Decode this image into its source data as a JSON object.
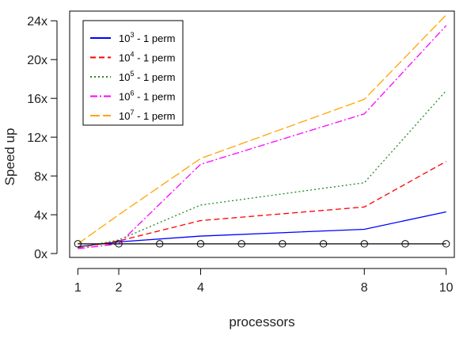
{
  "chart_data": {
    "type": "line",
    "title": "",
    "xlabel": "processors",
    "ylabel": "Speed up",
    "x_ticks": [
      1,
      2,
      4,
      8,
      10
    ],
    "y_ticks": [
      0,
      4,
      8,
      12,
      16,
      20,
      24
    ],
    "y_tick_labels": [
      "0x",
      "4x",
      "8x",
      "12x",
      "16x",
      "20x",
      "24x"
    ],
    "xlim": [
      0.8,
      10.2
    ],
    "ylim": [
      -0.4,
      25
    ],
    "grid": false,
    "legend_position": "top-left",
    "series": [
      {
        "name_base": "10",
        "name_exp": "3",
        "name_suffix": " - 1 perm",
        "color": "#0000ff",
        "dash": "",
        "x": [
          1,
          2,
          4,
          8,
          10
        ],
        "values": [
          0.7,
          1.2,
          1.8,
          2.5,
          4.3
        ]
      },
      {
        "name_base": "10",
        "name_exp": "4",
        "name_suffix": " - 1 perm",
        "color": "#ff0000",
        "dash": "7,4",
        "x": [
          1,
          2,
          4,
          8,
          10
        ],
        "values": [
          0.6,
          1.3,
          3.4,
          4.8,
          9.5
        ]
      },
      {
        "name_base": "10",
        "name_exp": "5",
        "name_suffix": " - 1 perm",
        "color": "#228b22",
        "dash": "2,3",
        "x": [
          1,
          2,
          4,
          8,
          10
        ],
        "values": [
          0.6,
          1.4,
          5.0,
          7.3,
          16.8
        ]
      },
      {
        "name_base": "10",
        "name_exp": "6",
        "name_suffix": " - 1 perm",
        "color": "#ff00ff",
        "dash": "9,3,2,3",
        "x": [
          1,
          2,
          4,
          8,
          10
        ],
        "values": [
          0.5,
          1.0,
          9.2,
          14.4,
          23.5
        ]
      },
      {
        "name_base": "10",
        "name_exp": "7",
        "name_suffix": " - 1 perm",
        "color": "#ffa500",
        "dash": "12,4",
        "x": [
          1,
          2,
          4,
          8,
          10
        ],
        "values": [
          1.0,
          4.0,
          9.8,
          15.9,
          24.6
        ]
      }
    ],
    "baseline": {
      "color": "#000000",
      "x": [
        1,
        2,
        3,
        4,
        5,
        6,
        7,
        8,
        9,
        10
      ],
      "values": [
        1,
        1,
        1,
        1,
        1,
        1,
        1,
        1,
        1,
        1
      ],
      "marker": "circle"
    }
  }
}
